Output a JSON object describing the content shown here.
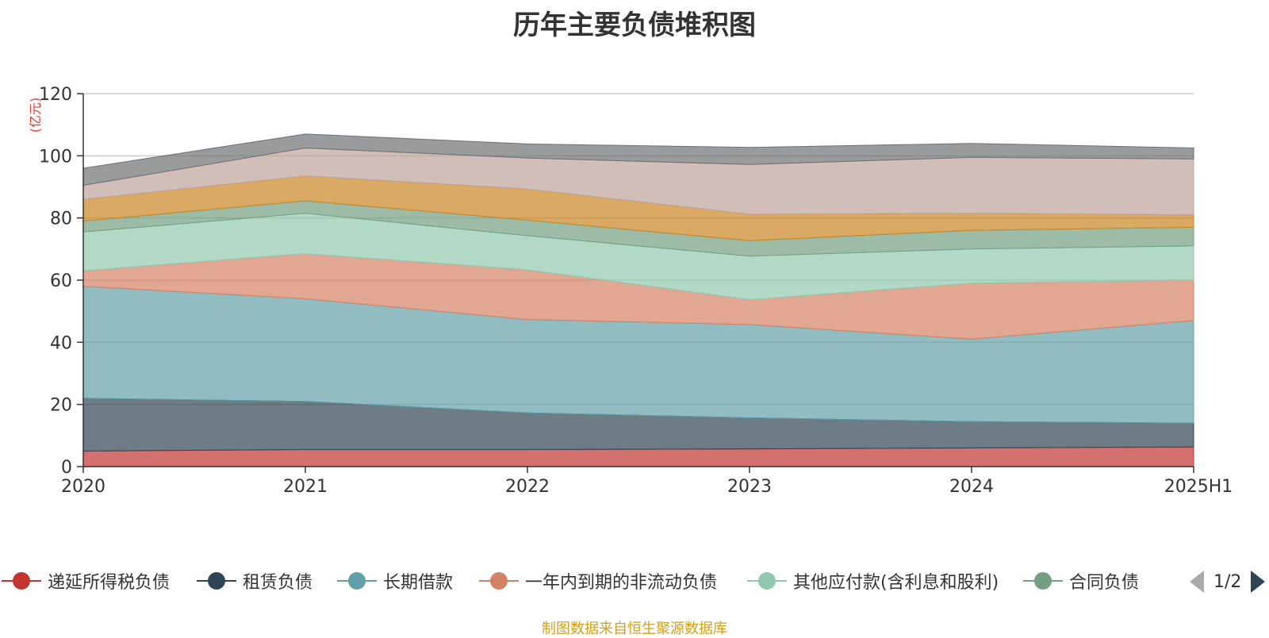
{
  "chart_data": {
    "type": "area",
    "title": "历年主要负债堆积图",
    "ylabel": "(亿元)",
    "xlabel": "",
    "ylim": [
      0,
      120
    ],
    "yticks": [
      "0",
      "20",
      "40",
      "60",
      "80",
      "100",
      "120"
    ],
    "categories": [
      "2020",
      "2021",
      "2022",
      "2023",
      "2024",
      "2025H1"
    ],
    "stacked": true,
    "grid": true,
    "legend_position": "bottom",
    "series": [
      {
        "name": "递延所得税负债",
        "color": "#c23531",
        "values": [
          5,
          5.5,
          5.5,
          5.7,
          6,
          6.3
        ]
      },
      {
        "name": "租赁负债",
        "color": "#2f4554",
        "values": [
          17,
          15.5,
          11.8,
          10,
          8.5,
          7.7
        ]
      },
      {
        "name": "长期借款",
        "color": "#61a0a8",
        "values": [
          36,
          33,
          30,
          30,
          26.5,
          33
        ]
      },
      {
        "name": "一年内到期的非流动负债",
        "color": "#d48265",
        "values": [
          5,
          14.5,
          16,
          8,
          18,
          13
        ]
      },
      {
        "name": "其他应付款(含利息和股利)",
        "color": "#91c7ae",
        "values": [
          12.5,
          13,
          11,
          14,
          11,
          11
        ]
      },
      {
        "name": "合同负债",
        "color": "#749f83",
        "values": [
          3.5,
          4,
          5,
          5,
          6,
          6
        ]
      },
      {
        "name": "",
        "color": "#ca8622",
        "values": [
          7,
          8,
          10,
          8.5,
          5.5,
          4
        ]
      },
      {
        "name": "",
        "color": "#bda29a",
        "values": [
          4.5,
          9,
          10,
          16,
          18,
          18
        ]
      },
      {
        "name": "",
        "color": "#6e7074",
        "values": [
          5.5,
          4.5,
          4.5,
          5.5,
          4.5,
          3.5
        ]
      }
    ]
  },
  "legend": {
    "items": [
      {
        "label": "递延所得税负债",
        "color": "#c23531"
      },
      {
        "label": "租赁负债",
        "color": "#2f4554"
      },
      {
        "label": "长期借款",
        "color": "#61a0a8"
      },
      {
        "label": "一年内到期的非流动负债",
        "color": "#d48265"
      },
      {
        "label": "其他应付款(含利息和股利)",
        "color": "#91c7ae"
      },
      {
        "label": "合同负债",
        "color": "#749f83"
      }
    ],
    "page": "1/2"
  },
  "source_note": "制图数据来自恒生聚源数据库"
}
